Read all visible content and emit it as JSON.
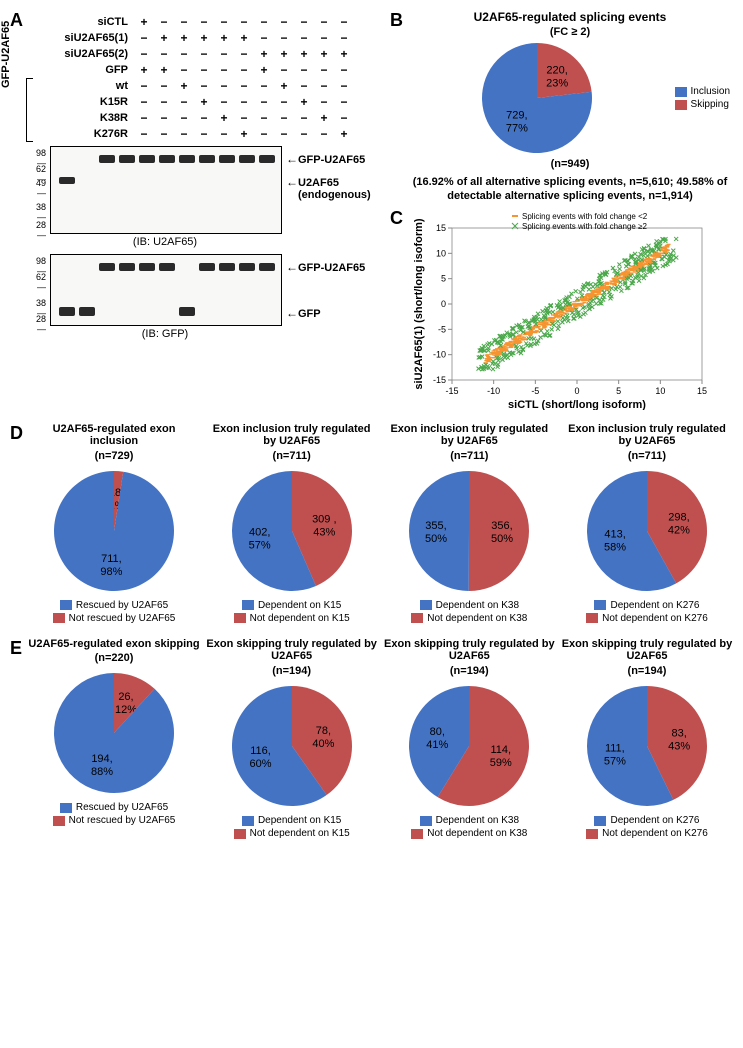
{
  "colors": {
    "blue": "#4473c4",
    "red": "#c05050",
    "scatter_orange": "#f59430",
    "scatter_green": "#4aa84a",
    "blot_bg": "#f8f8f6",
    "band": "#2a2a2a"
  },
  "panelA": {
    "label": "A",
    "bracket_label": "GFP-U2AF65",
    "conditions": [
      {
        "label": "siCTL",
        "cells": [
          "+",
          "−",
          "−",
          "−",
          "−",
          "−",
          "−",
          "−",
          "−",
          "−",
          "−"
        ]
      },
      {
        "label": "siU2AF65(1)",
        "cells": [
          "−",
          "+",
          "+",
          "+",
          "+",
          "+",
          "−",
          "−",
          "−",
          "−",
          "−"
        ]
      },
      {
        "label": "siU2AF65(2)",
        "cells": [
          "−",
          "−",
          "−",
          "−",
          "−",
          "−",
          "+",
          "+",
          "+",
          "+",
          "+"
        ]
      },
      {
        "label": "GFP",
        "cells": [
          "+",
          "+",
          "−",
          "−",
          "−",
          "−",
          "+",
          "−",
          "−",
          "−",
          "−"
        ]
      },
      {
        "label": "wt",
        "cells": [
          "−",
          "−",
          "+",
          "−",
          "−",
          "−",
          "−",
          "+",
          "−",
          "−",
          "−"
        ]
      },
      {
        "label": "K15R",
        "cells": [
          "−",
          "−",
          "−",
          "+",
          "−",
          "−",
          "−",
          "−",
          "+",
          "−",
          "−"
        ]
      },
      {
        "label": "K38R",
        "cells": [
          "−",
          "−",
          "−",
          "−",
          "+",
          "−",
          "−",
          "−",
          "−",
          "+",
          "−"
        ]
      },
      {
        "label": "K276R",
        "cells": [
          "−",
          "−",
          "−",
          "−",
          "−",
          "+",
          "−",
          "−",
          "−",
          "−",
          "+"
        ]
      }
    ],
    "mw_markers": [
      "98",
      "62",
      "49",
      "38",
      "28"
    ],
    "mw_markers2": [
      "98",
      "62",
      "38",
      "28"
    ],
    "blot1": {
      "caption": "(IB: U2AF65)",
      "arrows": [
        {
          "text": "GFP-U2AF65"
        },
        {
          "text": "U2AF65"
        },
        {
          "text": "(endogenous)"
        }
      ]
    },
    "blot2": {
      "caption": "(IB: GFP)",
      "arrows": [
        {
          "text": "GFP-U2AF65"
        },
        {
          "text": "GFP"
        }
      ]
    }
  },
  "panelB": {
    "label": "B",
    "title": "U2AF65-regulated splicing events",
    "subtitle": "(FC ≥ 2)",
    "n": "(n=949)",
    "caption": "(16.92% of all alternative splicing events, n=5,610; 49.58% of detectable alternative splicing events, n=1,914)",
    "slices": [
      {
        "label": "Inclusion",
        "value": 729,
        "pct": "77%",
        "color": "#4473c4",
        "text": "729, 77%"
      },
      {
        "label": "Skipping",
        "value": 220,
        "pct": "23%",
        "color": "#c05050",
        "text": "220, 23%"
      }
    ]
  },
  "panelC": {
    "label": "C",
    "legend": [
      {
        "marker": "−",
        "color": "#f59430",
        "text": "Splicing events with fold change <2"
      },
      {
        "marker": "×",
        "color": "#4aa84a",
        "text": "Splicing events with fold change ≥2"
      }
    ],
    "xlabel": "siCTL (short/long isoform)",
    "ylabel": "siU2AF65(1) (short/long isoform)",
    "xlim": [
      -15,
      15
    ],
    "ylim": [
      -15,
      15
    ],
    "tick_step": 5
  },
  "panelD": {
    "label": "D",
    "pies": [
      {
        "title": "U2AF65-regulated exon inclusion",
        "n": "(n=729)",
        "slices": [
          {
            "v": 711,
            "pct": "98%",
            "t": "711, 98%",
            "c": "#4473c4"
          },
          {
            "v": 18,
            "pct": "2%",
            "t": "18, 2%",
            "c": "#c05050"
          }
        ],
        "legend": [
          "Rescued by U2AF65",
          "Not rescued by U2AF65"
        ]
      },
      {
        "title": "Exon inclusion truly regulated by U2AF65",
        "n": "(n=711)",
        "slices": [
          {
            "v": 402,
            "pct": "57%",
            "t": "402, 57%",
            "c": "#4473c4"
          },
          {
            "v": 309,
            "pct": "43%",
            "t": "309 , 43%",
            "c": "#c05050"
          }
        ],
        "legend": [
          "Dependent on K15",
          "Not dependent on K15"
        ]
      },
      {
        "title": "Exon inclusion  truly regulated by U2AF65",
        "n": "(n=711)",
        "slices": [
          {
            "v": 355,
            "pct": "50%",
            "t": "355, 50%",
            "c": "#4473c4"
          },
          {
            "v": 356,
            "pct": "50%",
            "t": "356, 50%",
            "c": "#c05050"
          }
        ],
        "legend": [
          "Dependent on K38",
          "Not dependent on K38"
        ]
      },
      {
        "title": "Exon inclusion  truly regulated by U2AF65",
        "n": "(n=711)",
        "slices": [
          {
            "v": 413,
            "pct": "58%",
            "t": "413, 58%",
            "c": "#4473c4"
          },
          {
            "v": 298,
            "pct": "42%",
            "t": "298, 42%",
            "c": "#c05050"
          }
        ],
        "legend": [
          "Dependent on K276",
          "Not dependent on K276"
        ]
      }
    ]
  },
  "panelE": {
    "label": "E",
    "pies": [
      {
        "title": "U2AF65-regulated exon skipping",
        "n": "(n=220)",
        "slices": [
          {
            "v": 194,
            "pct": "88%",
            "t": "194, 88%",
            "c": "#4473c4"
          },
          {
            "v": 26,
            "pct": "12%",
            "t": "26, 12%",
            "c": "#c05050"
          }
        ],
        "legend": [
          "Rescued by U2AF65",
          "Not rescued by U2AF65"
        ]
      },
      {
        "title": "Exon skipping  truly regulated by U2AF65",
        "n": "(n=194)",
        "slices": [
          {
            "v": 116,
            "pct": "60%",
            "t": "116, 60%",
            "c": "#4473c4"
          },
          {
            "v": 78,
            "pct": "40%",
            "t": "78, 40%",
            "c": "#c05050"
          }
        ],
        "legend": [
          "Dependent on K15",
          "Not dependent on K15"
        ]
      },
      {
        "title": "Exon skipping  truly regulated by U2AF65",
        "n": "(n=194)",
        "slices": [
          {
            "v": 80,
            "pct": "41%",
            "t": "80, 41%",
            "c": "#4473c4"
          },
          {
            "v": 114,
            "pct": "59%",
            "t": "114, 59%",
            "c": "#c05050"
          }
        ],
        "legend": [
          "Dependent on K38",
          "Not dependent on K38"
        ]
      },
      {
        "title": "Exon skipping  truly regulated by U2AF65",
        "n": "(n=194)",
        "slices": [
          {
            "v": 111,
            "pct": "57%",
            "t": "111, 57%",
            "c": "#4473c4"
          },
          {
            "v": 83,
            "pct": "43%",
            "t": "83, 43%",
            "c": "#c05050"
          }
        ],
        "legend": [
          "Dependent on K276",
          "Not dependent on K276"
        ]
      }
    ]
  }
}
